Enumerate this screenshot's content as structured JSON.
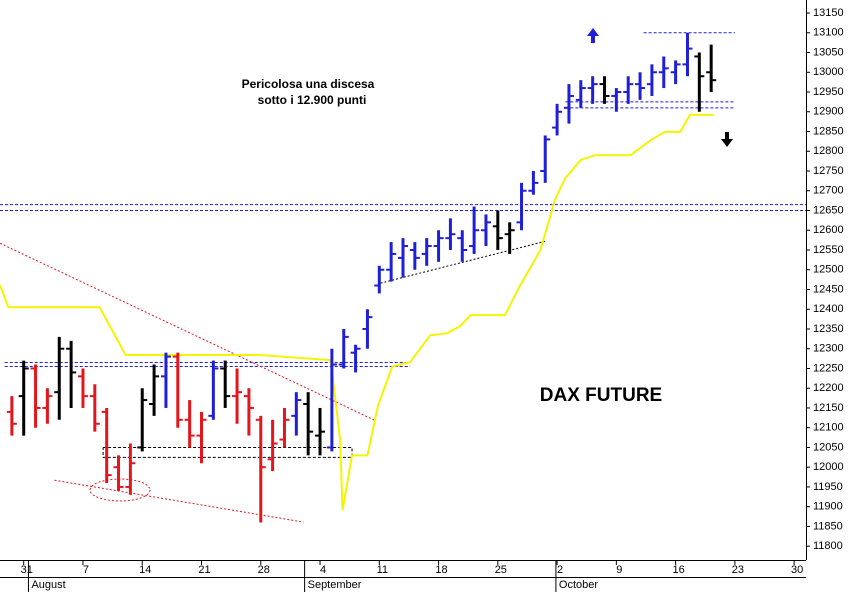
{
  "chart_data": {
    "type": "ohlc",
    "title": "DAX FUTURE",
    "annotations": [
      "Pericolosa una discesa",
      "sotto i 12.900 punti"
    ],
    "xlim": [
      -2,
      66
    ],
    "ylim": [
      11765,
      13183
    ],
    "yticks": [
      13150,
      13100,
      13050,
      13000,
      12950,
      12900,
      12850,
      12800,
      12750,
      12700,
      12650,
      12600,
      12550,
      12500,
      12450,
      12400,
      12350,
      12300,
      12250,
      12200,
      12150,
      12100,
      12050,
      12000,
      11950,
      11900,
      11850,
      11800
    ],
    "xticks": [
      {
        "value": 0,
        "label": "31"
      },
      {
        "value": 5,
        "label": "7"
      },
      {
        "value": 10,
        "label": "14"
      },
      {
        "value": 15,
        "label": "21"
      },
      {
        "value": 20,
        "label": "28"
      },
      {
        "value": 25,
        "label": "4"
      },
      {
        "value": 30,
        "label": "11"
      },
      {
        "value": 35,
        "label": "18"
      },
      {
        "value": 40,
        "label": "25"
      },
      {
        "value": 45,
        "label": "2"
      },
      {
        "value": 50,
        "label": "9"
      },
      {
        "value": 55,
        "label": "16"
      },
      {
        "value": 60,
        "label": "23"
      },
      {
        "value": 65,
        "label": "30"
      }
    ],
    "months": [
      {
        "value": 0.4,
        "label": "August"
      },
      {
        "value": 23.7,
        "label": "September"
      },
      {
        "value": 44.9,
        "label": "October"
      }
    ],
    "bars": {
      "x": [
        -1,
        0,
        1,
        2,
        3,
        4,
        5,
        6,
        7,
        8,
        9,
        10,
        11,
        12,
        13,
        14,
        15,
        16,
        17,
        18,
        19,
        20,
        21,
        22,
        23,
        24,
        25,
        26,
        27,
        28,
        29,
        30,
        31,
        32,
        33,
        34,
        35,
        36,
        37,
        38,
        39,
        40,
        41,
        42,
        43,
        44,
        45,
        46,
        47,
        48,
        49,
        50,
        51,
        52,
        53,
        54,
        55,
        56,
        57,
        58
      ],
      "open": [
        12140,
        12180,
        12250,
        12150,
        12190,
        12300,
        12230,
        12180,
        12140,
        12000,
        11950,
        12050,
        12160,
        12230,
        12280,
        12120,
        12080,
        12130,
        12250,
        12180,
        12180,
        12120,
        12020,
        12070,
        12130,
        12160,
        12080,
        12050,
        12260,
        12290,
        12350,
        12460,
        12500,
        12530,
        12550,
        12540,
        12560,
        12580,
        12580,
        12560,
        12600,
        12610,
        12590,
        12620,
        12700,
        12750,
        12860,
        12910,
        12930,
        12960,
        12970,
        12940,
        12950,
        12970,
        12970,
        13000,
        13000,
        13020,
        13040,
        13000
      ],
      "high": [
        12180,
        12270,
        12260,
        12200,
        12330,
        12320,
        12250,
        12210,
        12150,
        12030,
        12060,
        12200,
        12260,
        12290,
        12290,
        12170,
        12140,
        12270,
        12270,
        12250,
        12200,
        12130,
        12120,
        12150,
        12190,
        12190,
        12150,
        12300,
        12350,
        12310,
        12400,
        12510,
        12570,
        12580,
        12570,
        12580,
        12600,
        12630,
        12600,
        12660,
        12640,
        12650,
        12620,
        12720,
        12750,
        12840,
        12920,
        12970,
        12980,
        12990,
        12990,
        12960,
        12990,
        13000,
        13020,
        13040,
        13030,
        13100,
        13050,
        13070
      ],
      "low": [
        12080,
        12080,
        12100,
        12110,
        12120,
        12150,
        12150,
        12090,
        11960,
        11940,
        11930,
        12040,
        12130,
        12150,
        12100,
        12050,
        12010,
        12120,
        12150,
        12110,
        12080,
        11860,
        11990,
        12050,
        12080,
        12030,
        12030,
        12040,
        12250,
        12240,
        12300,
        12440,
        12470,
        12480,
        12500,
        12510,
        12520,
        12550,
        12520,
        12540,
        12560,
        12550,
        12540,
        12600,
        12690,
        12720,
        12840,
        12870,
        12910,
        12920,
        12920,
        12900,
        12920,
        12930,
        12940,
        12960,
        12970,
        12990,
        12900,
        12950
      ],
      "close": [
        12110,
        12250,
        12150,
        12180,
        12300,
        12240,
        12180,
        12110,
        11980,
        11950,
        12010,
        12170,
        12230,
        12280,
        12120,
        12080,
        12120,
        12250,
        12180,
        12190,
        12150,
        12000,
        12060,
        12120,
        12170,
        12090,
        12090,
        12260,
        12330,
        12300,
        12380,
        12500,
        12540,
        12560,
        12530,
        12560,
        12580,
        12590,
        12550,
        12600,
        12620,
        12580,
        12600,
        12700,
        12720,
        12830,
        12900,
        12940,
        12960,
        12970,
        12940,
        12950,
        12970,
        12960,
        13000,
        13010,
        13020,
        13060,
        12990,
        12980
      ],
      "color": [
        "#e3161c",
        "#000000",
        "#e3161c",
        "#e3161c",
        "#000000",
        "#000000",
        "#e3161c",
        "#e3161c",
        "#e3161c",
        "#e3161c",
        "#e3161c",
        "#000000",
        "#000000",
        "#1f1fd8",
        "#e3161c",
        "#e3161c",
        "#e3161c",
        "#1f1fd8",
        "#000000",
        "#e3161c",
        "#e3161c",
        "#e3161c",
        "#e3161c",
        "#e3161c",
        "#1f1fd8",
        "#000000",
        "#000000",
        "#1f1fd8",
        "#1f1fd8",
        "#1f1fd8",
        "#1f1fd8",
        "#1f1fd8",
        "#1f1fd8",
        "#1f1fd8",
        "#1f1fd8",
        "#1f1fd8",
        "#1f1fd8",
        "#1f1fd8",
        "#1f1fd8",
        "#1f1fd8",
        "#1f1fd8",
        "#000000",
        "#000000",
        "#1f1fd8",
        "#1f1fd8",
        "#1f1fd8",
        "#1f1fd8",
        "#1f1fd8",
        "#1f1fd8",
        "#1f1fd8",
        "#000000",
        "#1f1fd8",
        "#1f1fd8",
        "#1f1fd8",
        "#1f1fd8",
        "#1f1fd8",
        "#1f1fd8",
        "#1f1fd8",
        "#000000",
        "#000000"
      ]
    },
    "trail": {
      "color": "#f4f400",
      "x": [
        -2.0,
        -1.3,
        6.4,
        8.6,
        19.9,
        25.9,
        26.7,
        26.9,
        27.7,
        29.0,
        29.9,
        31.1,
        32.6,
        34.3,
        35.7,
        36.8,
        37.7,
        40.6,
        41.9,
        43.6,
        44.8,
        45.7,
        47.0,
        48.2,
        51.2,
        52.9,
        54.1,
        55.4,
        56.2,
        58.2
      ],
      "y": [
        12461,
        12405,
        12405,
        12284,
        12284,
        12271,
        12069,
        11891,
        12030,
        12030,
        12157,
        12255,
        12266,
        12334,
        12339,
        12357,
        12385,
        12385,
        12461,
        12550,
        12676,
        12732,
        12778,
        12790,
        12790,
        12828,
        12849,
        12849,
        12892,
        12892
      ]
    },
    "lines": [
      {
        "color": "#1f1fd8",
        "dash": "3,2",
        "x": [
          -2,
          66
        ],
        "y": [
          12665,
          12665
        ]
      },
      {
        "color": "#1f1fd8",
        "dash": "3,2",
        "x": [
          -2,
          66
        ],
        "y": [
          12650,
          12650
        ]
      },
      {
        "color": "#1f1fd8",
        "dash": "3,2",
        "x": [
          -1.6,
          32.6
        ],
        "y": [
          12265,
          12265
        ]
      },
      {
        "color": "#1f1fd8",
        "dash": "3,2",
        "x": [
          -1.6,
          32.6
        ],
        "y": [
          12255,
          12255
        ]
      },
      {
        "color": "#1f1fd8",
        "dash": "3,2",
        "x": [
          52.3,
          60.0
        ],
        "y": [
          13100,
          13100
        ]
      },
      {
        "color": "#1f1fd8",
        "dash": "3,2",
        "x": [
          45.7,
          60.0
        ],
        "y": [
          12925,
          12925
        ]
      },
      {
        "color": "#1f1fd8",
        "dash": "3,2",
        "x": [
          45.7,
          60.0
        ],
        "y": [
          12910,
          12910
        ]
      },
      {
        "color": "#000000",
        "dash": "2,2",
        "x": [
          30.1,
          44.0
        ],
        "y": [
          12466,
          12572
        ]
      },
      {
        "color": "#e3161c",
        "dash": "2,2",
        "x": [
          -2,
          29.6
        ],
        "y": [
          12567,
          12119
        ]
      },
      {
        "color": "#e3161c",
        "dash": "2,2",
        "x": [
          2.6,
          23.6
        ],
        "y": [
          11967,
          11861
        ]
      },
      {
        "color": "#000000",
        "dash": "3,2",
        "x": [
          6.7,
          27.7,
          27.7,
          6.7,
          6.7
        ],
        "y": [
          12050,
          12050,
          12025,
          12025,
          12050
        ]
      }
    ]
  }
}
